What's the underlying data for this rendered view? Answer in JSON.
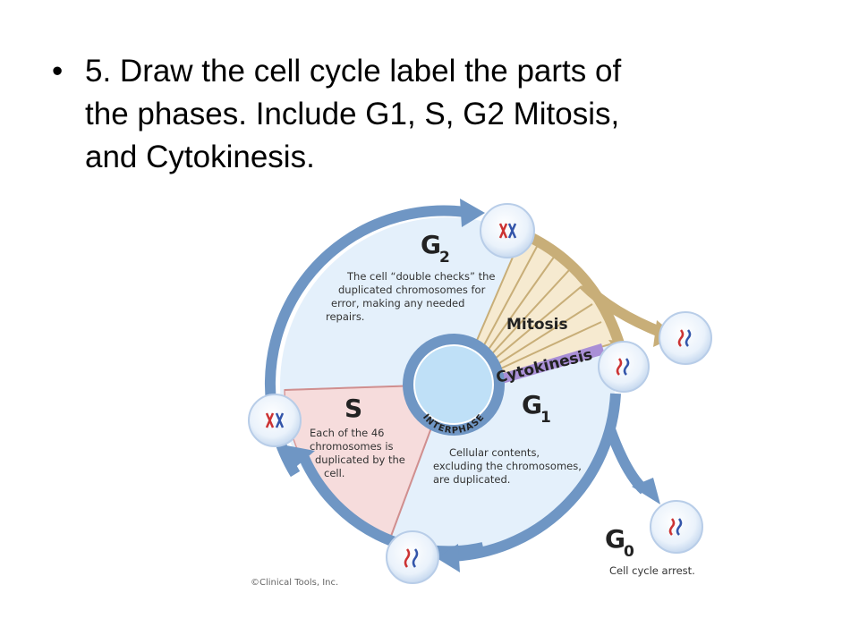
{
  "slide": {
    "bullet": "•",
    "lines": [
      "5.  Draw the cell cycle label the parts of",
      "the phases. Include G1, S, G2 Mitosis,",
      "and Cytokinesis."
    ]
  },
  "diagram": {
    "phases": {
      "g2": {
        "letter": "G",
        "subscript": "2",
        "description": [
          "The cell “double checks” the",
          "duplicated chromosomes for",
          "error, making any needed",
          "repairs."
        ]
      },
      "s": {
        "letter": "S",
        "description": [
          "Each of the 46",
          "chromosomes is",
          "duplicated by the",
          "cell."
        ]
      },
      "g1": {
        "letter": "G",
        "subscript": "1",
        "description": [
          "Cellular contents,",
          "excluding the chromosomes,",
          "are duplicated."
        ]
      },
      "g0": {
        "letter": "G",
        "subscript": "0",
        "description": "Cell cycle arrest."
      }
    },
    "mitosis_label": "Mitosis",
    "cytokinesis_label": "Cytokinesis",
    "interphase_label": "INTERPHASE",
    "copyright": "©Clinical Tools, Inc."
  },
  "colors": {
    "ring_blue": "#6f96c4",
    "interior_light_blue": "#e4f0fb",
    "s_sector_pink": "#f6dcdc",
    "mitosis_tan": "#c8ae78",
    "mitosis_fill": "#f6ead0",
    "cytokinesis_purple": "#a98fd6",
    "center_blue": "#bfe0f7"
  }
}
